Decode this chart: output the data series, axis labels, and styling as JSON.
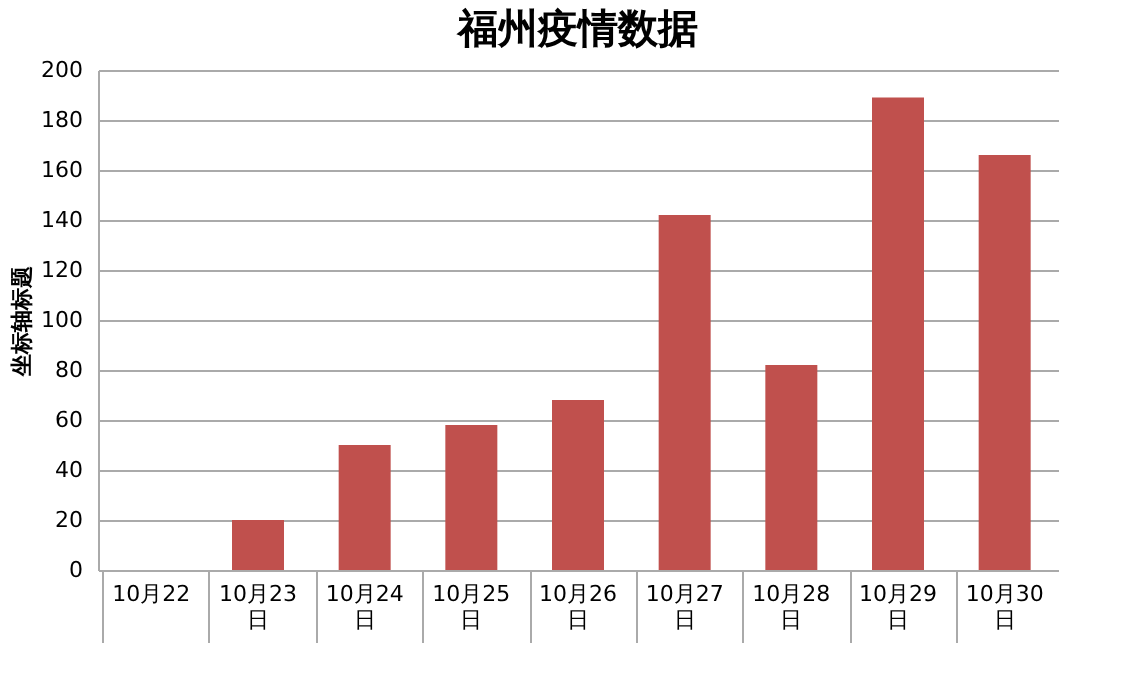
{
  "chart_data": {
    "type": "bar",
    "title": "福州疫情数据",
    "ylabel": "坐标轴标题",
    "categories": [
      "10月22",
      "10月23日",
      "10月24日",
      "10月25日",
      "10月26日",
      "10月27日",
      "10月28日",
      "10月29日",
      "10月30日"
    ],
    "values": [
      0,
      20,
      50,
      58,
      68,
      142,
      82,
      189,
      166
    ],
    "color": "#c0504d",
    "ylim": [
      0,
      200
    ],
    "yticks": [
      0,
      20,
      40,
      60,
      80,
      100,
      120,
      140,
      160,
      180,
      200
    ],
    "grid": "y"
  }
}
